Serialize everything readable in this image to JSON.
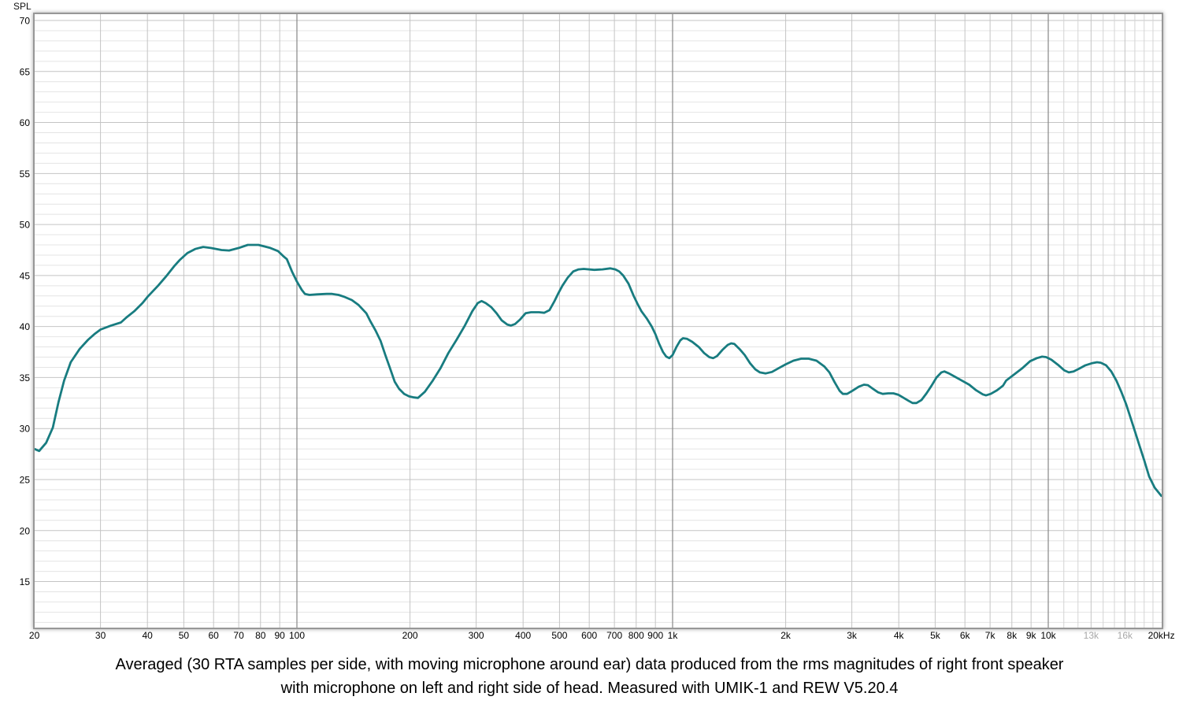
{
  "caption": {
    "line1": "Averaged (30 RTA samples per side, with moving microphone around ear) data produced from the rms magnitudes of right front speaker",
    "line2": "with microphone on left and right side of head. Measured with UMIK-1 and REW V5.20.4"
  },
  "chart_data": {
    "type": "line",
    "title": "",
    "ylabel": "SPL",
    "xlabel": "",
    "x_scale": "log",
    "x_unit": "Hz",
    "y_unit": "dB SPL",
    "x_range_hz": [
      20,
      20000
    ],
    "y_axis_range_visible": [
      10.5,
      70.7
    ],
    "y_ticks": [
      70,
      65,
      60,
      55,
      50,
      45,
      40,
      35,
      30,
      25,
      20,
      15
    ],
    "y_minor_step_db": 1,
    "grid": "on",
    "legend": "none",
    "x_ticks": [
      {
        "f": 20,
        "label": "20"
      },
      {
        "f": 30,
        "label": "30"
      },
      {
        "f": 40,
        "label": "40"
      },
      {
        "f": 50,
        "label": "50"
      },
      {
        "f": 60,
        "label": "60"
      },
      {
        "f": 70,
        "label": "70"
      },
      {
        "f": 80,
        "label": "80"
      },
      {
        "f": 90,
        "label": "90"
      },
      {
        "f": 100,
        "label": "100"
      },
      {
        "f": 200,
        "label": "200"
      },
      {
        "f": 300,
        "label": "300"
      },
      {
        "f": 400,
        "label": "400"
      },
      {
        "f": 500,
        "label": "500"
      },
      {
        "f": 600,
        "label": "600"
      },
      {
        "f": 700,
        "label": "700"
      },
      {
        "f": 800,
        "label": "800"
      },
      {
        "f": 900,
        "label": "900"
      },
      {
        "f": 1000,
        "label": "1k"
      },
      {
        "f": 2000,
        "label": "2k"
      },
      {
        "f": 3000,
        "label": "3k"
      },
      {
        "f": 4000,
        "label": "4k"
      },
      {
        "f": 5000,
        "label": "5k"
      },
      {
        "f": 6000,
        "label": "6k"
      },
      {
        "f": 7000,
        "label": "7k"
      },
      {
        "f": 8000,
        "label": "8k"
      },
      {
        "f": 9000,
        "label": "9k"
      },
      {
        "f": 10000,
        "label": "10k"
      },
      {
        "f": 13000,
        "label": "13k",
        "muted": true
      },
      {
        "f": 16000,
        "label": "16k",
        "muted": true
      },
      {
        "f": 20000,
        "label": "20kHz"
      }
    ],
    "x_decade_gridlines": [
      100,
      1000,
      10000
    ],
    "x_extra_minor_gridlines": [
      11000,
      12000,
      14000,
      15000,
      17000,
      18000,
      19000
    ],
    "colors": {
      "curve": "#187c80",
      "grid_major": "#c4c4c4",
      "grid_minor": "#e4e4e4",
      "grid_sub": "#d4d4d4",
      "grid_decade": "#878787",
      "frame": "#979797",
      "label": "#000000",
      "muted_label": "#a8a8a8",
      "background": "#ffffff"
    },
    "series": [
      {
        "name": "SPL",
        "color": "#187c80",
        "points": [
          [
            20,
            28.0
          ],
          [
            20.6,
            27.8
          ],
          [
            21.5,
            28.6
          ],
          [
            22.4,
            30.1
          ],
          [
            23.2,
            32.6
          ],
          [
            24,
            34.7
          ],
          [
            25,
            36.5
          ],
          [
            26.4,
            37.8
          ],
          [
            27.8,
            38.7
          ],
          [
            29,
            39.3
          ],
          [
            30,
            39.7
          ],
          [
            32,
            40.1
          ],
          [
            34,
            40.4
          ],
          [
            35.2,
            40.9
          ],
          [
            36.9,
            41.5
          ],
          [
            38.8,
            42.3
          ],
          [
            40,
            42.9
          ],
          [
            42.7,
            44.0
          ],
          [
            44.8,
            44.9
          ],
          [
            47.1,
            45.9
          ],
          [
            48.7,
            46.5
          ],
          [
            51.1,
            47.2
          ],
          [
            53.6,
            47.6
          ],
          [
            56.3,
            47.8
          ],
          [
            59,
            47.7
          ],
          [
            63,
            47.5
          ],
          [
            66,
            47.45
          ],
          [
            70,
            47.7
          ],
          [
            74,
            48.0
          ],
          [
            79,
            48.0
          ],
          [
            85,
            47.7
          ],
          [
            89,
            47.4
          ],
          [
            92,
            46.9
          ],
          [
            94,
            46.6
          ],
          [
            97,
            45.4
          ],
          [
            100,
            44.4
          ],
          [
            103,
            43.6
          ],
          [
            105,
            43.2
          ],
          [
            108,
            43.1
          ],
          [
            113,
            43.15
          ],
          [
            120,
            43.2
          ],
          [
            124,
            43.2
          ],
          [
            129,
            43.1
          ],
          [
            134,
            42.9
          ],
          [
            140,
            42.6
          ],
          [
            146,
            42.1
          ],
          [
            153,
            41.3
          ],
          [
            157,
            40.5
          ],
          [
            162,
            39.6
          ],
          [
            167,
            38.6
          ],
          [
            172,
            37.2
          ],
          [
            177,
            35.9
          ],
          [
            182,
            34.6
          ],
          [
            187,
            33.9
          ],
          [
            193,
            33.4
          ],
          [
            199,
            33.15
          ],
          [
            205,
            33.05
          ],
          [
            210,
            33.0
          ],
          [
            219,
            33.6
          ],
          [
            230,
            34.7
          ],
          [
            241,
            35.9
          ],
          [
            253,
            37.4
          ],
          [
            266,
            38.7
          ],
          [
            279,
            40.0
          ],
          [
            293,
            41.5
          ],
          [
            303,
            42.3
          ],
          [
            310,
            42.5
          ],
          [
            318,
            42.3
          ],
          [
            329,
            41.9
          ],
          [
            340,
            41.3
          ],
          [
            351,
            40.6
          ],
          [
            363,
            40.2
          ],
          [
            371,
            40.1
          ],
          [
            381,
            40.25
          ],
          [
            393,
            40.7
          ],
          [
            406,
            41.3
          ],
          [
            420,
            41.4
          ],
          [
            441,
            41.4
          ],
          [
            455,
            41.35
          ],
          [
            470,
            41.6
          ],
          [
            485,
            42.5
          ],
          [
            497,
            43.3
          ],
          [
            509,
            44.0
          ],
          [
            526,
            44.8
          ],
          [
            544,
            45.4
          ],
          [
            562,
            45.6
          ],
          [
            580,
            45.65
          ],
          [
            619,
            45.55
          ],
          [
            650,
            45.6
          ],
          [
            682,
            45.7
          ],
          [
            704,
            45.6
          ],
          [
            721,
            45.4
          ],
          [
            739,
            45.0
          ],
          [
            763,
            44.2
          ],
          [
            788,
            43.0
          ],
          [
            807,
            42.2
          ],
          [
            826,
            41.5
          ],
          [
            853,
            40.8
          ],
          [
            880,
            40.0
          ],
          [
            900,
            39.25
          ],
          [
            921,
            38.3
          ],
          [
            943,
            37.5
          ],
          [
            962,
            37.05
          ],
          [
            980,
            36.9
          ],
          [
            1000,
            37.2
          ],
          [
            1024,
            38.0
          ],
          [
            1049,
            38.65
          ],
          [
            1066,
            38.85
          ],
          [
            1092,
            38.8
          ],
          [
            1128,
            38.5
          ],
          [
            1174,
            38.0
          ],
          [
            1213,
            37.4
          ],
          [
            1252,
            37.0
          ],
          [
            1282,
            36.9
          ],
          [
            1313,
            37.1
          ],
          [
            1357,
            37.7
          ],
          [
            1402,
            38.2
          ],
          [
            1432,
            38.35
          ],
          [
            1460,
            38.3
          ],
          [
            1507,
            37.8
          ],
          [
            1556,
            37.2
          ],
          [
            1608,
            36.4
          ],
          [
            1661,
            35.8
          ],
          [
            1708,
            35.5
          ],
          [
            1769,
            35.4
          ],
          [
            1839,
            35.55
          ],
          [
            1911,
            35.9
          ],
          [
            2001,
            36.3
          ],
          [
            2098,
            36.65
          ],
          [
            2200,
            36.85
          ],
          [
            2303,
            36.85
          ],
          [
            2416,
            36.65
          ],
          [
            2533,
            36.1
          ],
          [
            2615,
            35.5
          ],
          [
            2699,
            34.55
          ],
          [
            2784,
            33.7
          ],
          [
            2840,
            33.4
          ],
          [
            2915,
            33.4
          ],
          [
            3009,
            33.7
          ],
          [
            3131,
            34.1
          ],
          [
            3232,
            34.3
          ],
          [
            3310,
            34.25
          ],
          [
            3415,
            33.9
          ],
          [
            3523,
            33.55
          ],
          [
            3626,
            33.4
          ],
          [
            3752,
            33.45
          ],
          [
            3872,
            33.45
          ],
          [
            3995,
            33.3
          ],
          [
            4123,
            33.0
          ],
          [
            4255,
            32.7
          ],
          [
            4354,
            32.5
          ],
          [
            4457,
            32.5
          ],
          [
            4600,
            32.8
          ],
          [
            4742,
            33.45
          ],
          [
            4890,
            34.2
          ],
          [
            5040,
            35.0
          ],
          [
            5195,
            35.5
          ],
          [
            5290,
            35.6
          ],
          [
            5440,
            35.4
          ],
          [
            5630,
            35.1
          ],
          [
            5890,
            34.7
          ],
          [
            6160,
            34.3
          ],
          [
            6425,
            33.75
          ],
          [
            6695,
            33.35
          ],
          [
            6825,
            33.25
          ],
          [
            7025,
            33.4
          ],
          [
            7305,
            33.75
          ],
          [
            7575,
            34.2
          ],
          [
            7725,
            34.7
          ],
          [
            8113,
            35.3
          ],
          [
            8520,
            35.9
          ],
          [
            8945,
            36.6
          ],
          [
            9320,
            36.9
          ],
          [
            9630,
            37.05
          ],
          [
            9870,
            37.0
          ],
          [
            10190,
            36.75
          ],
          [
            10610,
            36.25
          ],
          [
            11040,
            35.7
          ],
          [
            11345,
            35.5
          ],
          [
            11675,
            35.6
          ],
          [
            12060,
            35.85
          ],
          [
            12555,
            36.2
          ],
          [
            13060,
            36.4
          ],
          [
            13480,
            36.5
          ],
          [
            13800,
            36.45
          ],
          [
            14250,
            36.2
          ],
          [
            14710,
            35.6
          ],
          [
            15185,
            34.7
          ],
          [
            15670,
            33.55
          ],
          [
            16115,
            32.4
          ],
          [
            16545,
            31.1
          ],
          [
            16930,
            29.95
          ],
          [
            17460,
            28.4
          ],
          [
            18005,
            26.9
          ],
          [
            18560,
            25.3
          ],
          [
            19200,
            24.2
          ],
          [
            20000,
            23.4
          ]
        ]
      }
    ]
  }
}
